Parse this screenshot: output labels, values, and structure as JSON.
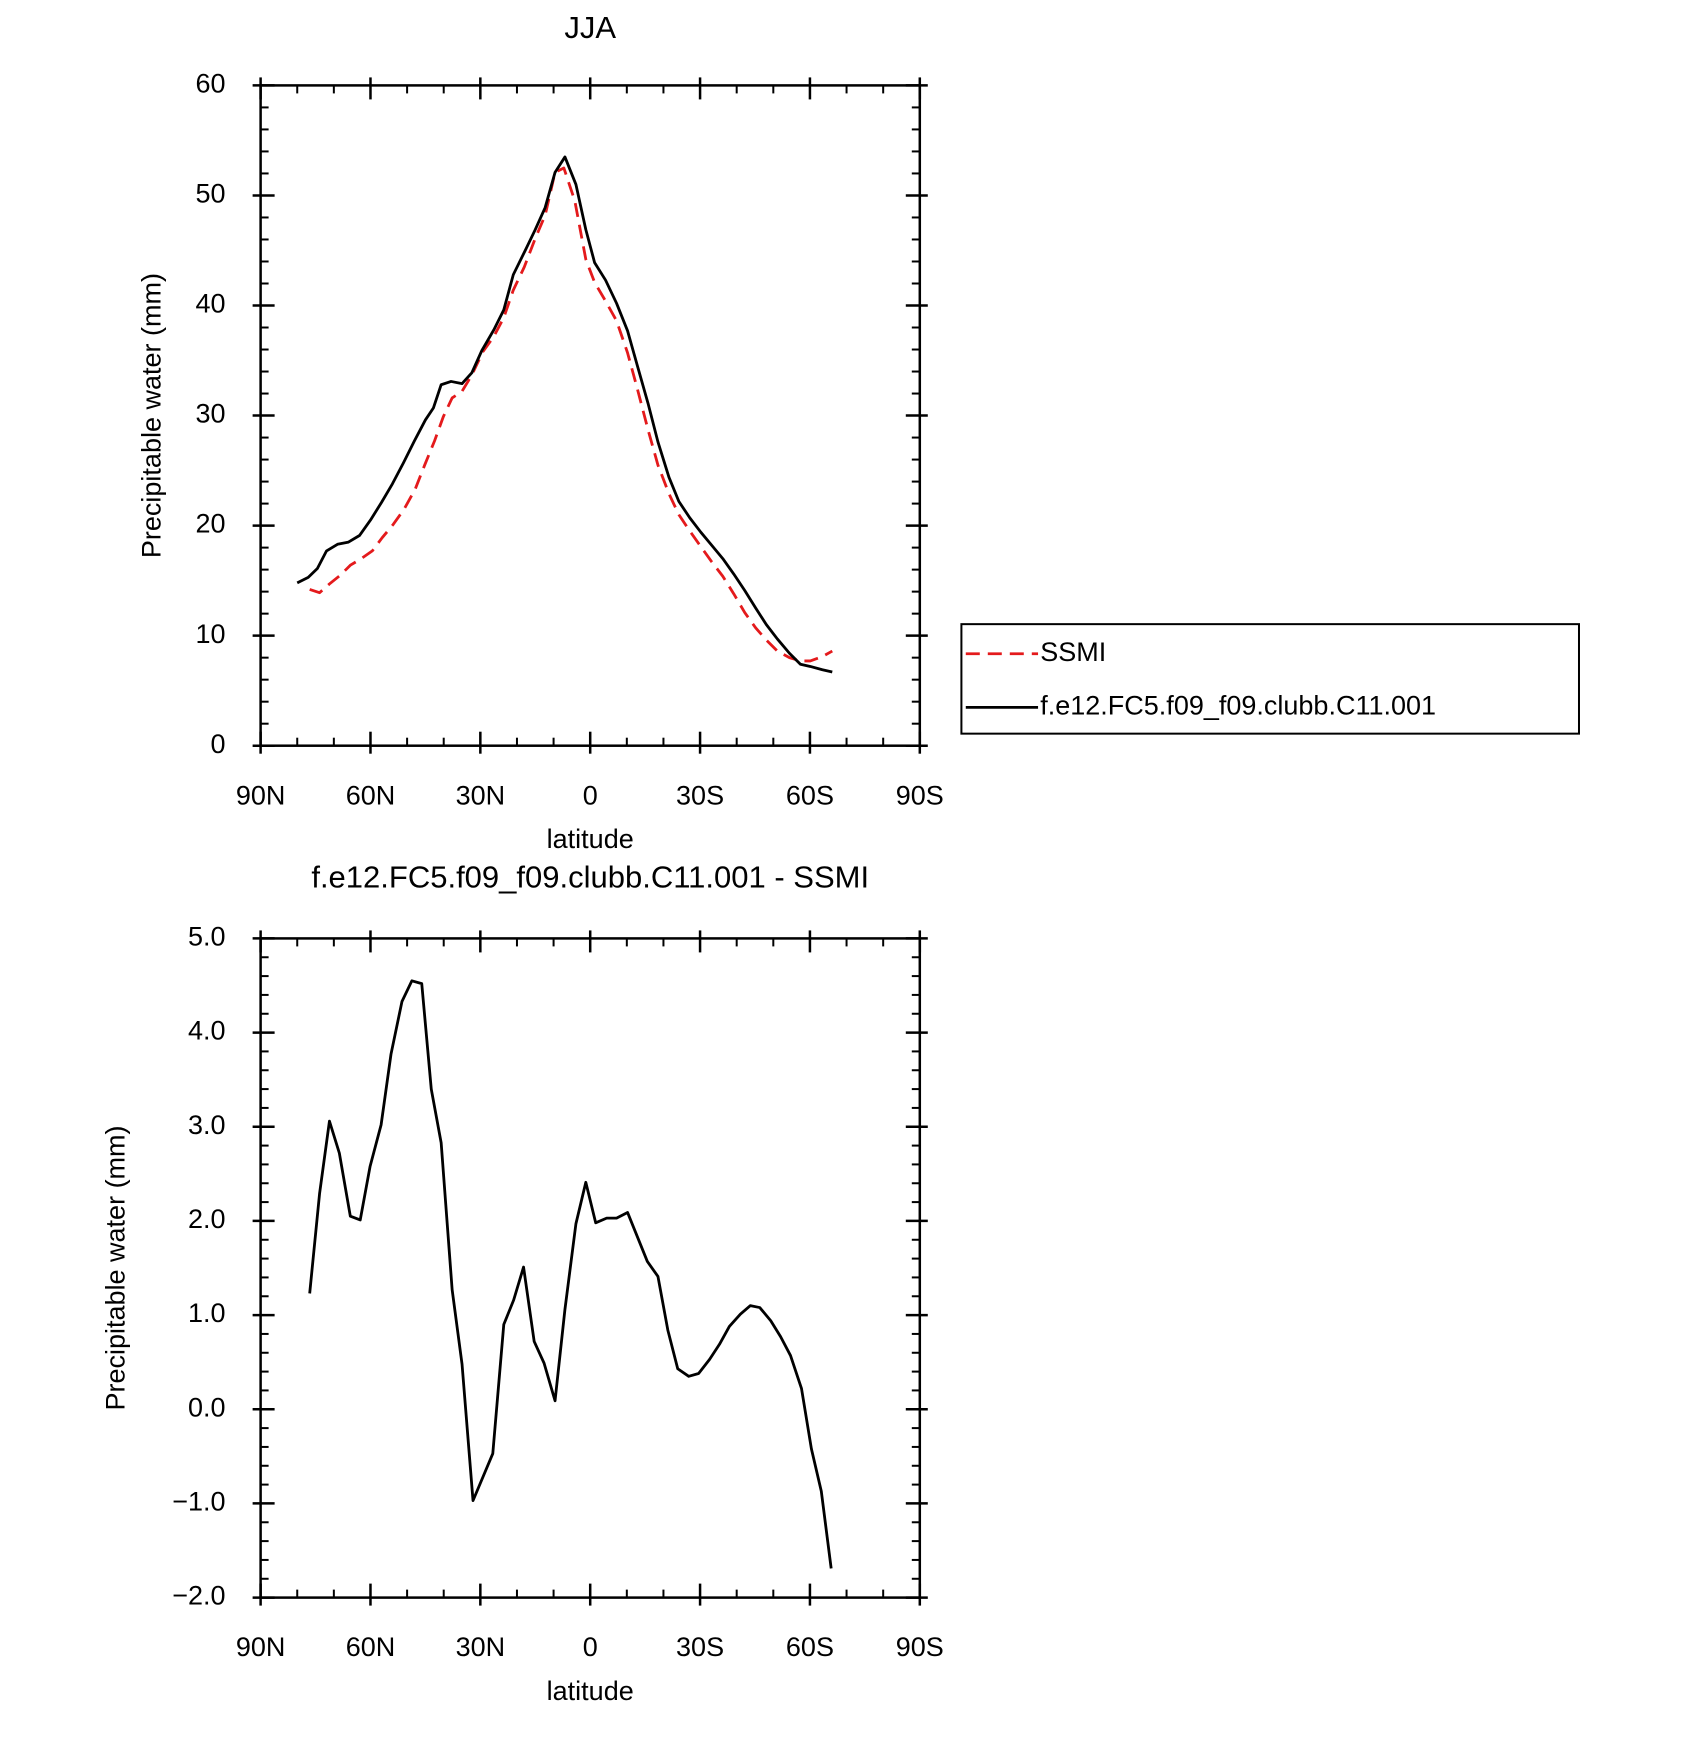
{
  "chart_data": [
    {
      "type": "line",
      "title": "JJA",
      "xlabel": "latitude",
      "ylabel": "Precipitable water (mm)",
      "xlim": [
        90,
        -90
      ],
      "xticks": [
        {
          "value": 90,
          "label": "90N"
        },
        {
          "value": 60,
          "label": "60N"
        },
        {
          "value": 30,
          "label": "30N"
        },
        0,
        {
          "value": -30,
          "label": "30S"
        },
        {
          "value": -60,
          "label": "60S"
        },
        {
          "value": -90,
          "label": "90S"
        }
      ],
      "ylim": [
        0,
        60
      ],
      "yticks": [
        0,
        10,
        20,
        30,
        40,
        50,
        60
      ],
      "legend": "right",
      "series": [
        {
          "name": "SSMI",
          "color": "#e41a1c",
          "dashed": true,
          "x": [
            76.6,
            73.9,
            71.2,
            68.2,
            65.5,
            62.5,
            59.5,
            56.8,
            53.8,
            50.8,
            47.8,
            45.2,
            42.5,
            40.1,
            37.7,
            35,
            32.3,
            29.3,
            26.3,
            23.6,
            21,
            18,
            15,
            12.3,
            9.6,
            7.2,
            4.2,
            1.2,
            -1.2,
            -4.2,
            -7.2,
            -10.2,
            -12.9,
            -15.8,
            -18.5,
            -21.5,
            -24.2,
            -27.2,
            -30.2,
            -33.2,
            -36.2,
            -39.2,
            -42.2,
            -45.2,
            -48.1,
            -51.1,
            -54.4,
            -57.4,
            -60.1,
            -63.4,
            -66.1
          ],
          "values": [
            14.2,
            13.9,
            14.7,
            15.5,
            16.4,
            17.0,
            17.7,
            18.9,
            20.1,
            21.5,
            23.3,
            25.5,
            27.7,
            29.9,
            31.6,
            32.2,
            33.7,
            35.8,
            37.2,
            38.9,
            41.4,
            43.5,
            46.1,
            48.2,
            52.1,
            52.5,
            49.5,
            44.2,
            42.1,
            40.4,
            38.6,
            35.7,
            32.4,
            28.7,
            25.5,
            22.9,
            21.0,
            19.5,
            18.1,
            16.7,
            15.4,
            13.8,
            12.1,
            10.7,
            9.6,
            8.6,
            8.0,
            7.7,
            7.7,
            8.1,
            8.6
          ]
        },
        {
          "name": "f.e12.FC5.f09_f09.clubb.C11.001",
          "color": "#000000",
          "dashed": false,
          "x": [
            80,
            77,
            74.5,
            72,
            69,
            66,
            63,
            60,
            57,
            54,
            51,
            48,
            45,
            42.8,
            40.7,
            38,
            35,
            32.3,
            29.6,
            26.3,
            23.6,
            21,
            17.6,
            15,
            12.3,
            9.6,
            6.9,
            3.9,
            1.2,
            -1.2,
            -4.2,
            -7.2,
            -10.2,
            -12.9,
            -15.8,
            -18.5,
            -21.5,
            -24.2,
            -27.2,
            -30.2,
            -33.2,
            -36.2,
            -39.2,
            -42.2,
            -45.2,
            -48.1,
            -51.1,
            -54.4,
            -57.4,
            -60.1,
            -63.4,
            -66.1
          ],
          "values": [
            14.8,
            15.3,
            16.1,
            17.7,
            18.3,
            18.5,
            19.1,
            20.5,
            22.1,
            23.8,
            25.7,
            27.7,
            29.6,
            30.7,
            32.8,
            33.1,
            32.9,
            33.9,
            35.9,
            37.8,
            39.6,
            42.8,
            45.1,
            46.9,
            48.9,
            52.1,
            53.5,
            51.0,
            46.9,
            43.9,
            42.3,
            40.2,
            37.7,
            34.5,
            31.1,
            27.6,
            24.4,
            22.2,
            20.7,
            19.4,
            18.2,
            17.0,
            15.6,
            14.1,
            12.5,
            11.0,
            9.7,
            8.4,
            7.4,
            7.2,
            6.9,
            6.7
          ]
        }
      ]
    },
    {
      "type": "line",
      "title": "f.e12.FC5.f09_f09.clubb.C11.001 - SSMI",
      "xlabel": "latitude",
      "ylabel": "Precipitable water (mm)",
      "xlim": [
        90,
        -90
      ],
      "xticks": [
        {
          "value": 90,
          "label": "90N"
        },
        {
          "value": 60,
          "label": "60N"
        },
        {
          "value": 30,
          "label": "30N"
        },
        0,
        {
          "value": -30,
          "label": "30S"
        },
        {
          "value": -60,
          "label": "60S"
        },
        {
          "value": -90,
          "label": "90S"
        }
      ],
      "ylim": [
        -2,
        5
      ],
      "yticks": [
        {
          "value": -2,
          "label": "−2.0"
        },
        {
          "value": -1,
          "label": "−1.0"
        },
        {
          "value": 0,
          "label": "0.0"
        },
        {
          "value": 1,
          "label": "1.0"
        },
        {
          "value": 2,
          "label": "2.0"
        },
        {
          "value": 3,
          "label": "3.0"
        },
        {
          "value": 4,
          "label": "4.0"
        },
        {
          "value": 5,
          "label": "5.0"
        }
      ],
      "series": [
        {
          "color": "#000000",
          "dashed": false,
          "x": [
            76.6,
            73.9,
            71.2,
            68.5,
            65.5,
            62.8,
            60.1,
            57.1,
            54.4,
            51.4,
            48.7,
            46,
            43.4,
            40.7,
            37.7,
            35,
            32,
            26.6,
            23.6,
            20.9,
            18.2,
            15.3,
            12.6,
            9.6,
            6.9,
            3.9,
            1.2,
            -1.5,
            -4.5,
            -7.2,
            -10.2,
            -12.9,
            -15.6,
            -18.5,
            -21.2,
            -23.9,
            -26.9,
            -29.6,
            -32.6,
            -35.3,
            -38,
            -41,
            -43.7,
            -46.3,
            -49.3,
            -52,
            -54.7,
            -57.7,
            -60.4,
            -63.1,
            -65.8
          ],
          "values": [
            1.23,
            2.29,
            3.06,
            2.72,
            2.05,
            2.01,
            2.58,
            3.02,
            3.77,
            4.33,
            4.55,
            4.52,
            3.4,
            2.83,
            1.27,
            0.48,
            -0.97,
            -0.47,
            0.9,
            1.16,
            1.51,
            0.72,
            0.49,
            0.09,
            1.06,
            1.97,
            2.41,
            1.98,
            2.03,
            2.03,
            2.09,
            1.83,
            1.57,
            1.41,
            0.84,
            0.43,
            0.35,
            0.38,
            0.53,
            0.69,
            0.88,
            1.01,
            1.1,
            1.08,
            0.94,
            0.77,
            0.57,
            0.22,
            -0.42,
            -0.87,
            -1.69
          ]
        }
      ]
    }
  ]
}
